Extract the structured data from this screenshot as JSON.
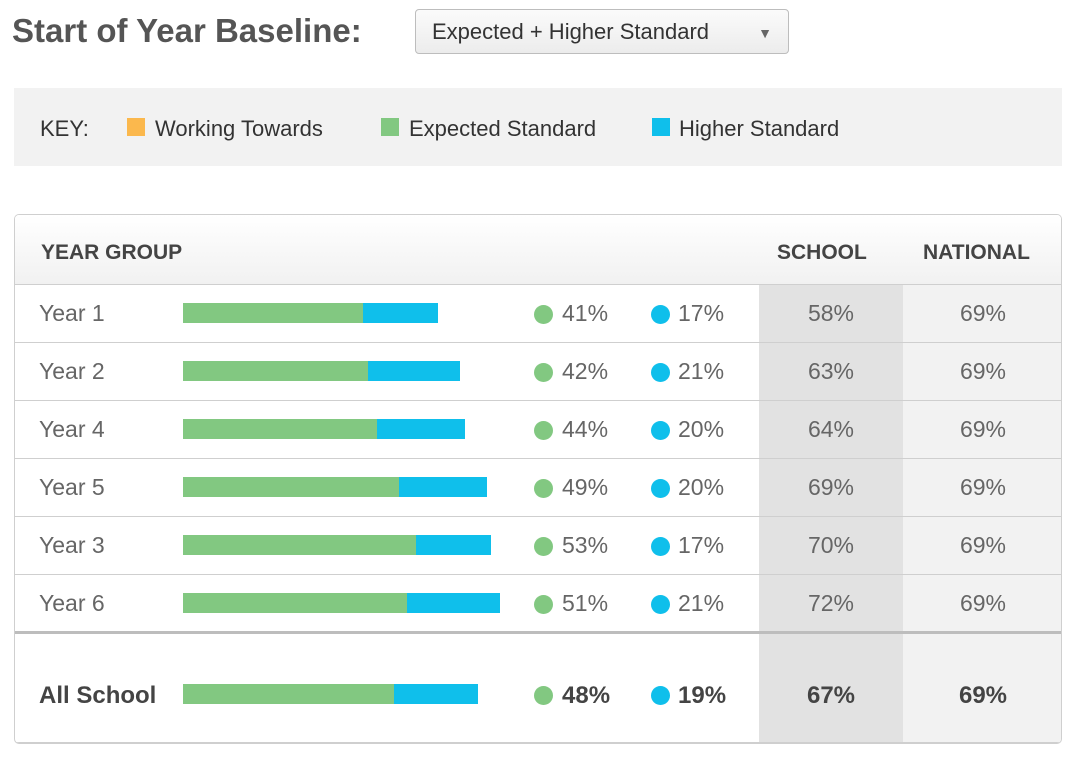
{
  "header": {
    "title": "Start of Year Baseline:",
    "baseline_select": {
      "value": "Expected + Higher Standard",
      "caret": "▼"
    }
  },
  "key": {
    "label": "KEY:",
    "items": [
      {
        "label": "Working Towards",
        "color": "#fbb84d"
      },
      {
        "label": "Expected Standard",
        "color": "#82c881"
      },
      {
        "label": "Higher Standard",
        "color": "#0fbfeb"
      }
    ]
  },
  "table": {
    "headers": {
      "year_group": "YEAR GROUP",
      "school": "SCHOOL",
      "national": "NATIONAL"
    },
    "rows": [
      {
        "name": "Year 1",
        "expected": 41,
        "higher": 17,
        "expected_label": "41%",
        "higher_label": "17%",
        "school": "58%",
        "national": "69%"
      },
      {
        "name": "Year 2",
        "expected": 42,
        "higher": 21,
        "expected_label": "42%",
        "higher_label": "21%",
        "school": "63%",
        "national": "69%"
      },
      {
        "name": "Year 4",
        "expected": 44,
        "higher": 20,
        "expected_label": "44%",
        "higher_label": "20%",
        "school": "64%",
        "national": "69%"
      },
      {
        "name": "Year 5",
        "expected": 49,
        "higher": 20,
        "expected_label": "49%",
        "higher_label": "20%",
        "school": "69%",
        "national": "69%"
      },
      {
        "name": "Year 3",
        "expected": 53,
        "higher": 17,
        "expected_label": "53%",
        "higher_label": "17%",
        "school": "70%",
        "national": "69%"
      },
      {
        "name": "Year 6",
        "expected": 51,
        "higher": 21,
        "expected_label": "51%",
        "higher_label": "21%",
        "school": "72%",
        "national": "69%"
      }
    ],
    "total": {
      "name": "All School",
      "expected": 48,
      "higher": 19,
      "expected_label": "48%",
      "higher_label": "19%",
      "school": "67%",
      "national": "69%"
    }
  },
  "colors": {
    "expected": "#82c881",
    "higher": "#0fbfeb",
    "working": "#fbb84d"
  }
}
